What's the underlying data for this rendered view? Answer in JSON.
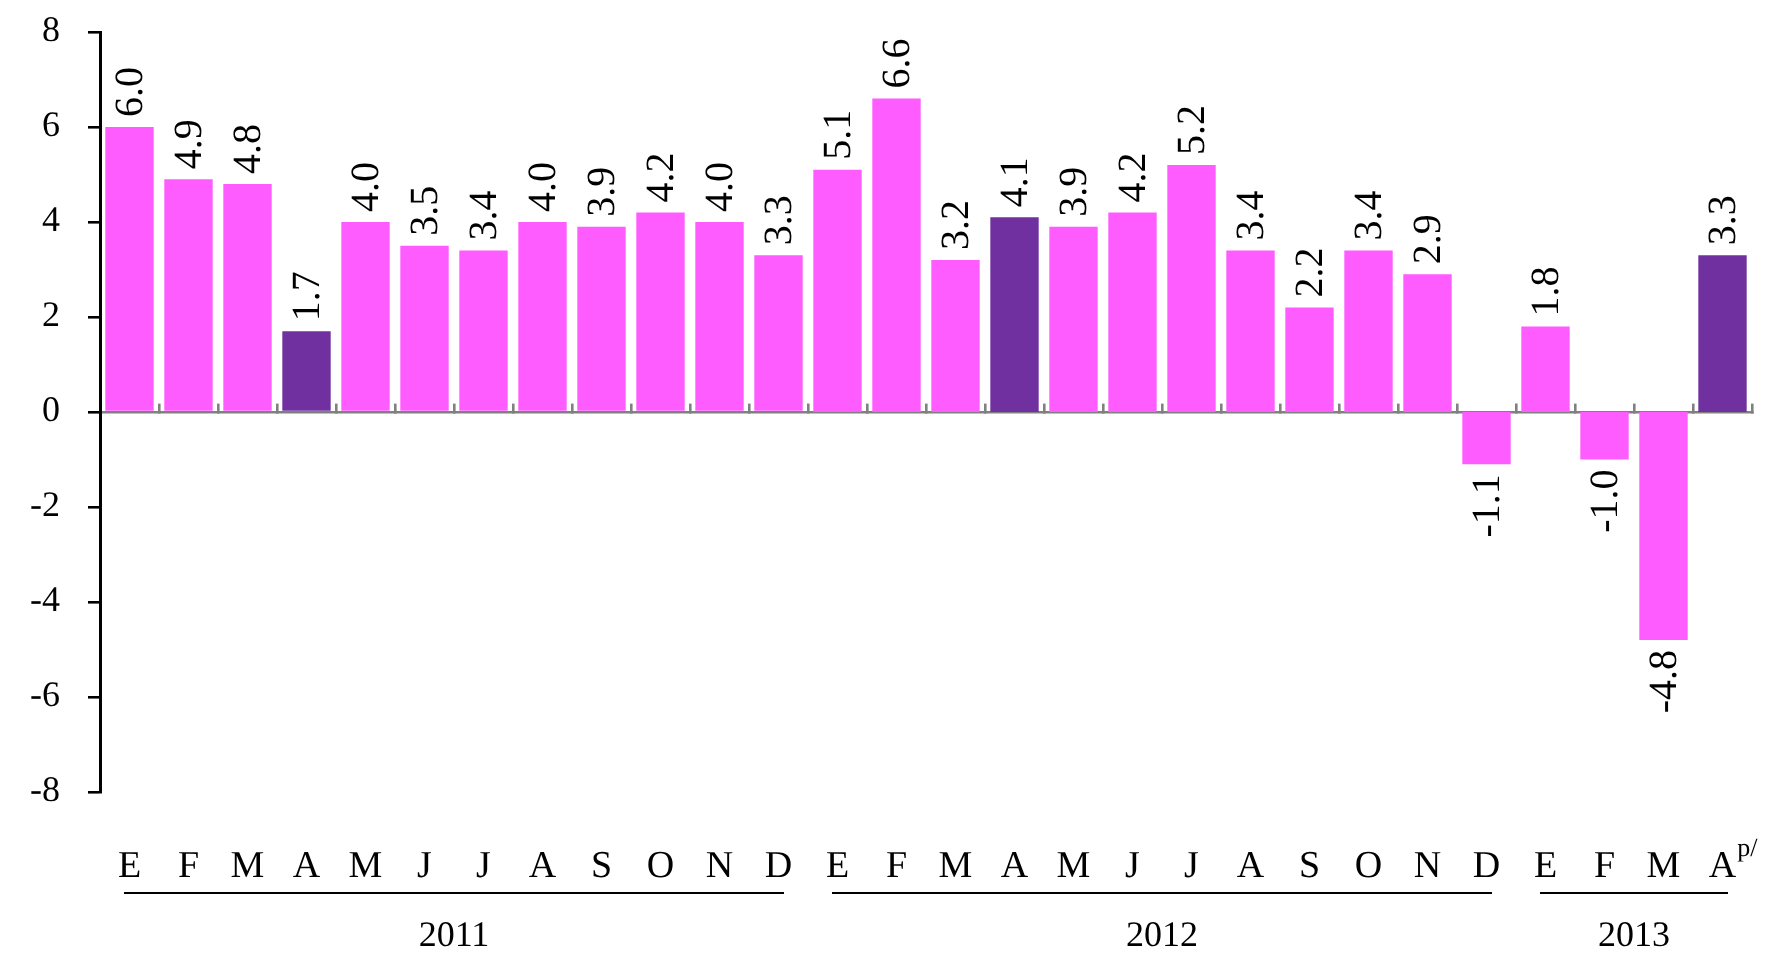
{
  "chart_data": [
    {
      "type": "bar",
      "categories": [
        "E",
        "F",
        "M",
        "A",
        "M",
        "J",
        "J",
        "A",
        "S",
        "O",
        "N",
        "D"
      ],
      "values": [
        6.0,
        4.9,
        4.8,
        1.7,
        4.0,
        3.5,
        3.4,
        4.0,
        3.9,
        4.2,
        4.0,
        3.3
      ],
      "value_labels": [
        "6.0",
        "4.9",
        "4.8",
        "1.7",
        "4.0",
        "3.5",
        "3.4",
        "4.0",
        "3.9",
        "4.2",
        "4.0",
        "3.3"
      ],
      "colors": [
        "#ff5cff",
        "#ff5cff",
        "#ff5cff",
        "#7030a0",
        "#ff5cff",
        "#ff5cff",
        "#ff5cff",
        "#ff5cff",
        "#ff5cff",
        "#ff5cff",
        "#ff5cff",
        "#ff5cff"
      ],
      "xlabel": "2011",
      "ylim": [
        -8,
        8
      ],
      "yticks": [
        -8,
        -6,
        -4,
        -2,
        0,
        2,
        4,
        6,
        8
      ]
    },
    {
      "type": "bar",
      "categories": [
        "E",
        "F",
        "M",
        "A",
        "M",
        "J",
        "J",
        "A",
        "S",
        "O",
        "N",
        "D"
      ],
      "values": [
        5.1,
        6.6,
        3.2,
        4.1,
        3.9,
        4.2,
        5.2,
        3.4,
        2.2,
        3.4,
        2.9,
        -1.1
      ],
      "value_labels": [
        "5.1",
        "6.6",
        "3.2",
        "4.1",
        "3.9",
        "4.2",
        "5.2",
        "3.4",
        "2.2",
        "3.4",
        "2.9",
        "-1.1"
      ],
      "colors": [
        "#ff5cff",
        "#ff5cff",
        "#ff5cff",
        "#7030a0",
        "#ff5cff",
        "#ff5cff",
        "#ff5cff",
        "#ff5cff",
        "#ff5cff",
        "#ff5cff",
        "#ff5cff",
        "#ff5cff"
      ],
      "xlabel": "2012",
      "ylim": [
        -8,
        8
      ],
      "yticks": [
        -8,
        -6,
        -4,
        -2,
        0,
        2,
        4,
        6,
        8
      ],
      "tick_labels": "x"
    },
    {
      "type": "bar",
      "categories": [
        "E",
        "F",
        "M",
        "A$^{p/}$"
      ],
      "values": [
        1.8,
        -1.0,
        -4.8,
        3.3
      ],
      "value_labels": [
        "1.8",
        "-1.0",
        "-4.8",
        "3.3"
      ],
      "colors": [
        "#ff5cff",
        "#ff5cff",
        "#ff5cff",
        "#7030a0"
      ],
      "xlabel": "2013",
      "ylim": [
        -8,
        8
      ],
      "yticks": [
        -8,
        -6,
        -4,
        -2,
        0,
        2,
        4,
        6,
        8
      ],
      "tick_labels": "x"
    }
  ]
}
